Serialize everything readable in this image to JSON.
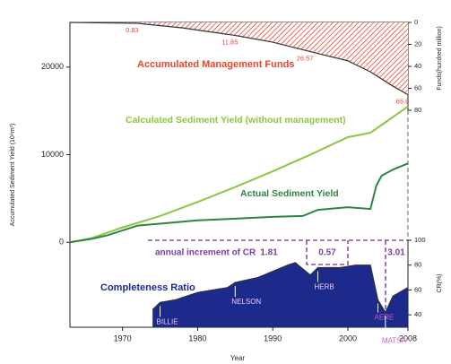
{
  "chart_data": [
    {
      "type": "line",
      "xlabel": "Year",
      "ylabel": "Accumulated Sediment Yield (10⁴m³)",
      "xlim": [
        1963,
        2008
      ],
      "xticks": [
        1970,
        1980,
        1990,
        2000,
        2008
      ],
      "ylim": [
        -9700,
        25100
      ],
      "yticks": [
        0,
        10000,
        20000
      ],
      "series": [
        {
          "name": "Calculated Sediment Yield (without management)",
          "color": "#8cc63e",
          "x": [
            1963,
            1966,
            1970,
            1975,
            1980,
            1985,
            1990,
            1995,
            2000,
            2003,
            2005,
            2008
          ],
          "values": [
            0,
            500,
            1700,
            3000,
            4600,
            6300,
            8100,
            10000,
            12000,
            12500,
            13700,
            15500
          ]
        },
        {
          "name": "Actual Sediment Yield",
          "color": "#2e8540",
          "x": [
            1963,
            1966,
            1968,
            1972,
            1976,
            1980,
            1985,
            1990,
            1994,
            1996,
            2000,
            2003,
            2003.8,
            2004.5,
            2006,
            2008
          ],
          "values": [
            0,
            400,
            800,
            1900,
            2200,
            2500,
            2700,
            2900,
            3000,
            3700,
            4000,
            3800,
            6500,
            7600,
            8300,
            9000
          ]
        }
      ]
    },
    {
      "type": "area",
      "name": "Accumulated Management Funds",
      "color": "#e8452a",
      "ylabel": "Funds(hundred million)",
      "ylim": [
        0,
        80
      ],
      "yticks": [
        0,
        20,
        40,
        60,
        80
      ],
      "x": [
        1963,
        1972,
        1978,
        1985,
        1990,
        1995,
        2000,
        2003,
        2006,
        2008
      ],
      "values": [
        0,
        0.83,
        5,
        11.85,
        18,
        26.57,
        35,
        45,
        58,
        65.8
      ],
      "value_labels": [
        null,
        "0.83",
        null,
        "11.85",
        null,
        "26.57",
        null,
        null,
        null,
        "65.8"
      ]
    },
    {
      "type": "area",
      "name": "Completeness Ratio",
      "color": "#1c2a8c",
      "ylabel": "CR(%)",
      "ylim": [
        30,
        100
      ],
      "yticks": [
        40,
        60,
        80,
        100
      ],
      "x": [
        1974,
        1975,
        1977,
        1980,
        1984,
        1985,
        1988,
        1992,
        1993,
        1995,
        1996,
        1999,
        2001,
        2003,
        2004,
        2005,
        2006,
        2008
      ],
      "values": [
        44,
        50,
        52,
        58,
        62,
        66,
        70,
        80,
        82,
        72,
        78,
        78,
        80,
        80,
        52,
        42,
        55,
        62
      ],
      "increment_title": "annual increment of CR",
      "increments": [
        1.81,
        0.57,
        3.01
      ],
      "events": [
        {
          "name": "BILLIE",
          "x": 1975
        },
        {
          "name": "NELSON",
          "x": 1985
        },
        {
          "name": "HERB",
          "x": 1996
        },
        {
          "name": "AERE",
          "x": 2004
        },
        {
          "name": "MATSA",
          "x": 2005
        }
      ]
    }
  ]
}
